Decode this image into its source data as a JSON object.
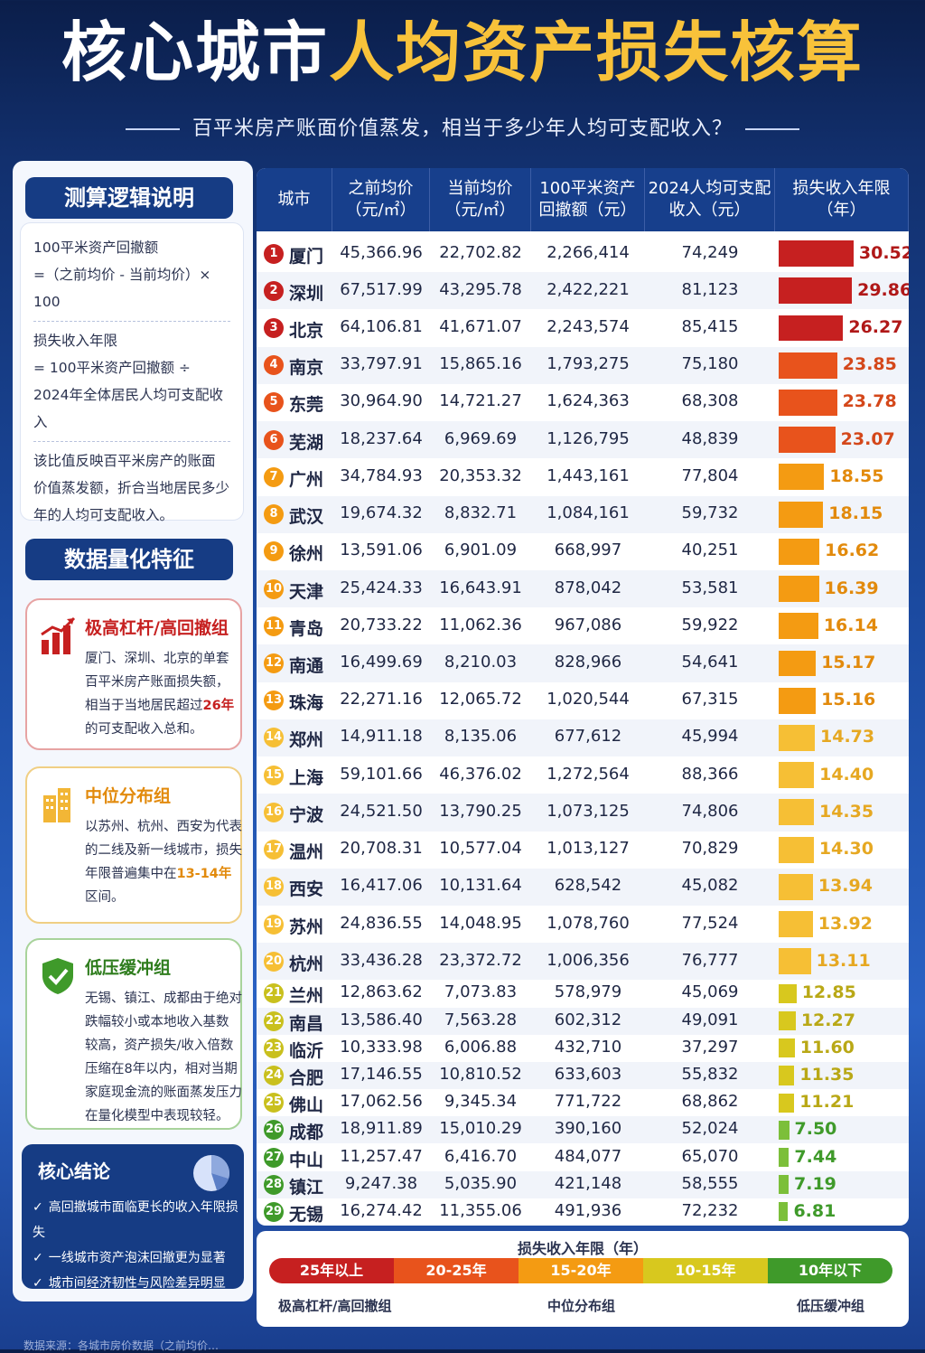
{
  "header": {
    "title_white": "核心城市",
    "title_yellow": "人均资产损失核算",
    "subtitle": "百平米房产账面价值蒸发，相当于多少年人均可支配收入？"
  },
  "logic": {
    "section_title": "测算逻辑说明",
    "l1": "100平米资产回撤额",
    "l2": "=（之前均价 - 当前均价）× 100",
    "l3": "损失收入年限",
    "l4": "= 100平米资产回撤额 ÷",
    "l5": "2024年全体居民人均可支配收入",
    "l6": "该比值反映百平米房产的账面",
    "l7": "价值蒸发额，折合当地居民多少",
    "l8": "年的人均可支配收入。"
  },
  "features": {
    "section_title": "数据量化特征",
    "high": {
      "title": "极高杠杆/高回撤组",
      "b1": "厦门、深圳、北京的单套",
      "b2": "百平米房产账面损失额，",
      "b3a": "相当于当地居民超过",
      "b3b": "26年",
      "b4": "的可支配收入总和。"
    },
    "mid": {
      "title": "中位分布组",
      "b1": "以苏州、杭州、西安为代表",
      "b2": "的二线及新一线城市，损失",
      "b3a": "年限普遍集中在",
      "b3b": "13-14年",
      "b4": "区间。"
    },
    "low": {
      "title": "低压缓冲组",
      "b1": "无锡、镇江、成都由于绝对",
      "b2": "跌幅较小或本地收入基数",
      "b3": "较高，资产损失/收入倍数",
      "b4": "压缩在8年以内，相对当期",
      "b5": "家庭现金流的账面蒸发压力",
      "b6": "在量化模型中表现较轻。"
    }
  },
  "conclusion": {
    "title": "核心结论",
    "items": [
      "高回撤城市面临更长的收入年限损失",
      "一线城市资产泡沫回撤更为显著",
      "城市间经济韧性与风险差异明显"
    ]
  },
  "table": {
    "headers": [
      [
        "城市"
      ],
      [
        "之前均价",
        "（元/㎡）"
      ],
      [
        "当前均价",
        "（元/㎡）"
      ],
      [
        "100平米资产",
        "回撤额（元）"
      ],
      [
        "2024人均可支配",
        "收入（元）"
      ],
      [
        "损失收入年限",
        "（年）"
      ]
    ]
  },
  "chart_data": {
    "type": "table",
    "columns": [
      "城市",
      "之前均价（元/㎡）",
      "当前均价（元/㎡）",
      "100平米资产回撤额（元）",
      "2024人均可支配收入（元）",
      "损失收入年限（年）"
    ],
    "rows": [
      {
        "rank": "1",
        "city": "厦门",
        "before": "45,366.96",
        "now": "22,702.82",
        "loss": "2,266,414",
        "income": "74,249",
        "years": 30.52,
        "years_label": "30.52"
      },
      {
        "rank": "2",
        "city": "深圳",
        "before": "67,517.99",
        "now": "43,295.78",
        "loss": "2,422,221",
        "income": "81,123",
        "years": 29.86,
        "years_label": "29.86"
      },
      {
        "rank": "3",
        "city": "北京",
        "before": "64,106.81",
        "now": "41,671.07",
        "loss": "2,243,574",
        "income": "85,415",
        "years": 26.27,
        "years_label": "26.27"
      },
      {
        "rank": "4",
        "city": "南京",
        "before": "33,797.91",
        "now": "15,865.16",
        "loss": "1,793,275",
        "income": "75,180",
        "years": 23.85,
        "years_label": "23.85"
      },
      {
        "rank": "5",
        "city": "东莞",
        "before": "30,964.90",
        "now": "14,721.27",
        "loss": "1,624,363",
        "income": "68,308",
        "years": 23.78,
        "years_label": "23.78"
      },
      {
        "rank": "6",
        "city": "芜湖",
        "before": "18,237.64",
        "now": "6,969.69",
        "loss": "1,126,795",
        "income": "48,839",
        "years": 23.07,
        "years_label": "23.07"
      },
      {
        "rank": "7",
        "city": "广州",
        "before": "34,784.93",
        "now": "20,353.32",
        "loss": "1,443,161",
        "income": "77,804",
        "years": 18.55,
        "years_label": "18.55"
      },
      {
        "rank": "8",
        "city": "武汉",
        "before": "19,674.32",
        "now": "8,832.71",
        "loss": "1,084,161",
        "income": "59,732",
        "years": 18.15,
        "years_label": "18.15"
      },
      {
        "rank": "9",
        "city": "徐州",
        "before": "13,591.06",
        "now": "6,901.09",
        "loss": "668,997",
        "income": "40,251",
        "years": 16.62,
        "years_label": "16.62"
      },
      {
        "rank": "10",
        "city": "天津",
        "before": "25,424.33",
        "now": "16,643.91",
        "loss": "878,042",
        "income": "53,581",
        "years": 16.39,
        "years_label": "16.39"
      },
      {
        "rank": "11",
        "city": "青岛",
        "before": "20,733.22",
        "now": "11,062.36",
        "loss": "967,086",
        "income": "59,922",
        "years": 16.14,
        "years_label": "16.14"
      },
      {
        "rank": "12",
        "city": "南通",
        "before": "16,499.69",
        "now": "8,210.03",
        "loss": "828,966",
        "income": "54,641",
        "years": 15.17,
        "years_label": "15.17"
      },
      {
        "rank": "13",
        "city": "珠海",
        "before": "22,271.16",
        "now": "12,065.72",
        "loss": "1,020,544",
        "income": "67,315",
        "years": 15.16,
        "years_label": "15.16"
      },
      {
        "rank": "14",
        "city": "郑州",
        "before": "14,911.18",
        "now": "8,135.06",
        "loss": "677,612",
        "income": "45,994",
        "years": 14.73,
        "years_label": "14.73"
      },
      {
        "rank": "15",
        "city": "上海",
        "before": "59,101.66",
        "now": "46,376.02",
        "loss": "1,272,564",
        "income": "88,366",
        "years": 14.4,
        "years_label": "14.40"
      },
      {
        "rank": "16",
        "city": "宁波",
        "before": "24,521.50",
        "now": "13,790.25",
        "loss": "1,073,125",
        "income": "74,806",
        "years": 14.35,
        "years_label": "14.35"
      },
      {
        "rank": "17",
        "city": "温州",
        "before": "20,708.31",
        "now": "10,577.04",
        "loss": "1,013,127",
        "income": "70,829",
        "years": 14.3,
        "years_label": "14.30"
      },
      {
        "rank": "18",
        "city": "西安",
        "before": "16,417.06",
        "now": "10,131.64",
        "loss": "628,542",
        "income": "45,082",
        "years": 13.94,
        "years_label": "13.94"
      },
      {
        "rank": "19",
        "city": "苏州",
        "before": "24,836.55",
        "now": "14,048.95",
        "loss": "1,078,760",
        "income": "77,524",
        "years": 13.92,
        "years_label": "13.92"
      },
      {
        "rank": "20",
        "city": "杭州",
        "before": "33,436.28",
        "now": "23,372.72",
        "loss": "1,006,356",
        "income": "76,777",
        "years": 13.11,
        "years_label": "13.11"
      },
      {
        "rank": "21",
        "city": "兰州",
        "before": "12,863.62",
        "now": "7,073.83",
        "loss": "578,979",
        "income": "45,069",
        "years": 12.85,
        "years_label": "12.85"
      },
      {
        "rank": "22",
        "city": "南昌",
        "before": "13,586.40",
        "now": "7,563.28",
        "loss": "602,312",
        "income": "49,091",
        "years": 12.27,
        "years_label": "12.27"
      },
      {
        "rank": "23",
        "city": "临沂",
        "before": "10,333.98",
        "now": "6,006.88",
        "loss": "432,710",
        "income": "37,297",
        "years": 11.6,
        "years_label": "11.60"
      },
      {
        "rank": "24",
        "city": "合肥",
        "before": "17,146.55",
        "now": "10,810.52",
        "loss": "633,603",
        "income": "55,832",
        "years": 11.35,
        "years_label": "11.35"
      },
      {
        "rank": "25",
        "city": "佛山",
        "before": "17,062.56",
        "now": "9,345.34",
        "loss": "771,722",
        "income": "68,862",
        "years": 11.21,
        "years_label": "11.21"
      },
      {
        "rank": "26",
        "city": "成都",
        "before": "18,911.89",
        "now": "15,010.29",
        "loss": "390,160",
        "income": "52,024",
        "years": 7.5,
        "years_label": "7.50"
      },
      {
        "rank": "27",
        "city": "中山",
        "before": "11,257.47",
        "now": "6,416.70",
        "loss": "484,077",
        "income": "65,070",
        "years": 7.44,
        "years_label": "7.44"
      },
      {
        "rank": "28",
        "city": "镇江",
        "before": "9,247.38",
        "now": "5,035.90",
        "loss": "421,148",
        "income": "58,555",
        "years": 7.19,
        "years_label": "7.19"
      },
      {
        "rank": "29",
        "city": "无锡",
        "before": "16,274.42",
        "now": "11,355.06",
        "loss": "491,936",
        "income": "72,232",
        "years": 6.81,
        "years_label": "6.81"
      }
    ]
  },
  "legend": {
    "title": "损失收入年限（年）",
    "segments": [
      {
        "label": "25年以上",
        "color": "#c62020"
      },
      {
        "label": "20-25年",
        "color": "#e8531c"
      },
      {
        "label": "15-20年",
        "color": "#f49b12"
      },
      {
        "label": "10-15年",
        "color": "#d8c81e"
      },
      {
        "label": "10年以下",
        "color": "#3f9a2a"
      }
    ],
    "groups": [
      "极高杠杆/高回撤组",
      "中位分布组",
      "低压缓冲组"
    ]
  },
  "footer": {
    "source": "数据来源：各城市房价数据（之前均价…"
  },
  "colors": {
    "primary": "#163c84",
    "gold": "#f8c23a"
  }
}
